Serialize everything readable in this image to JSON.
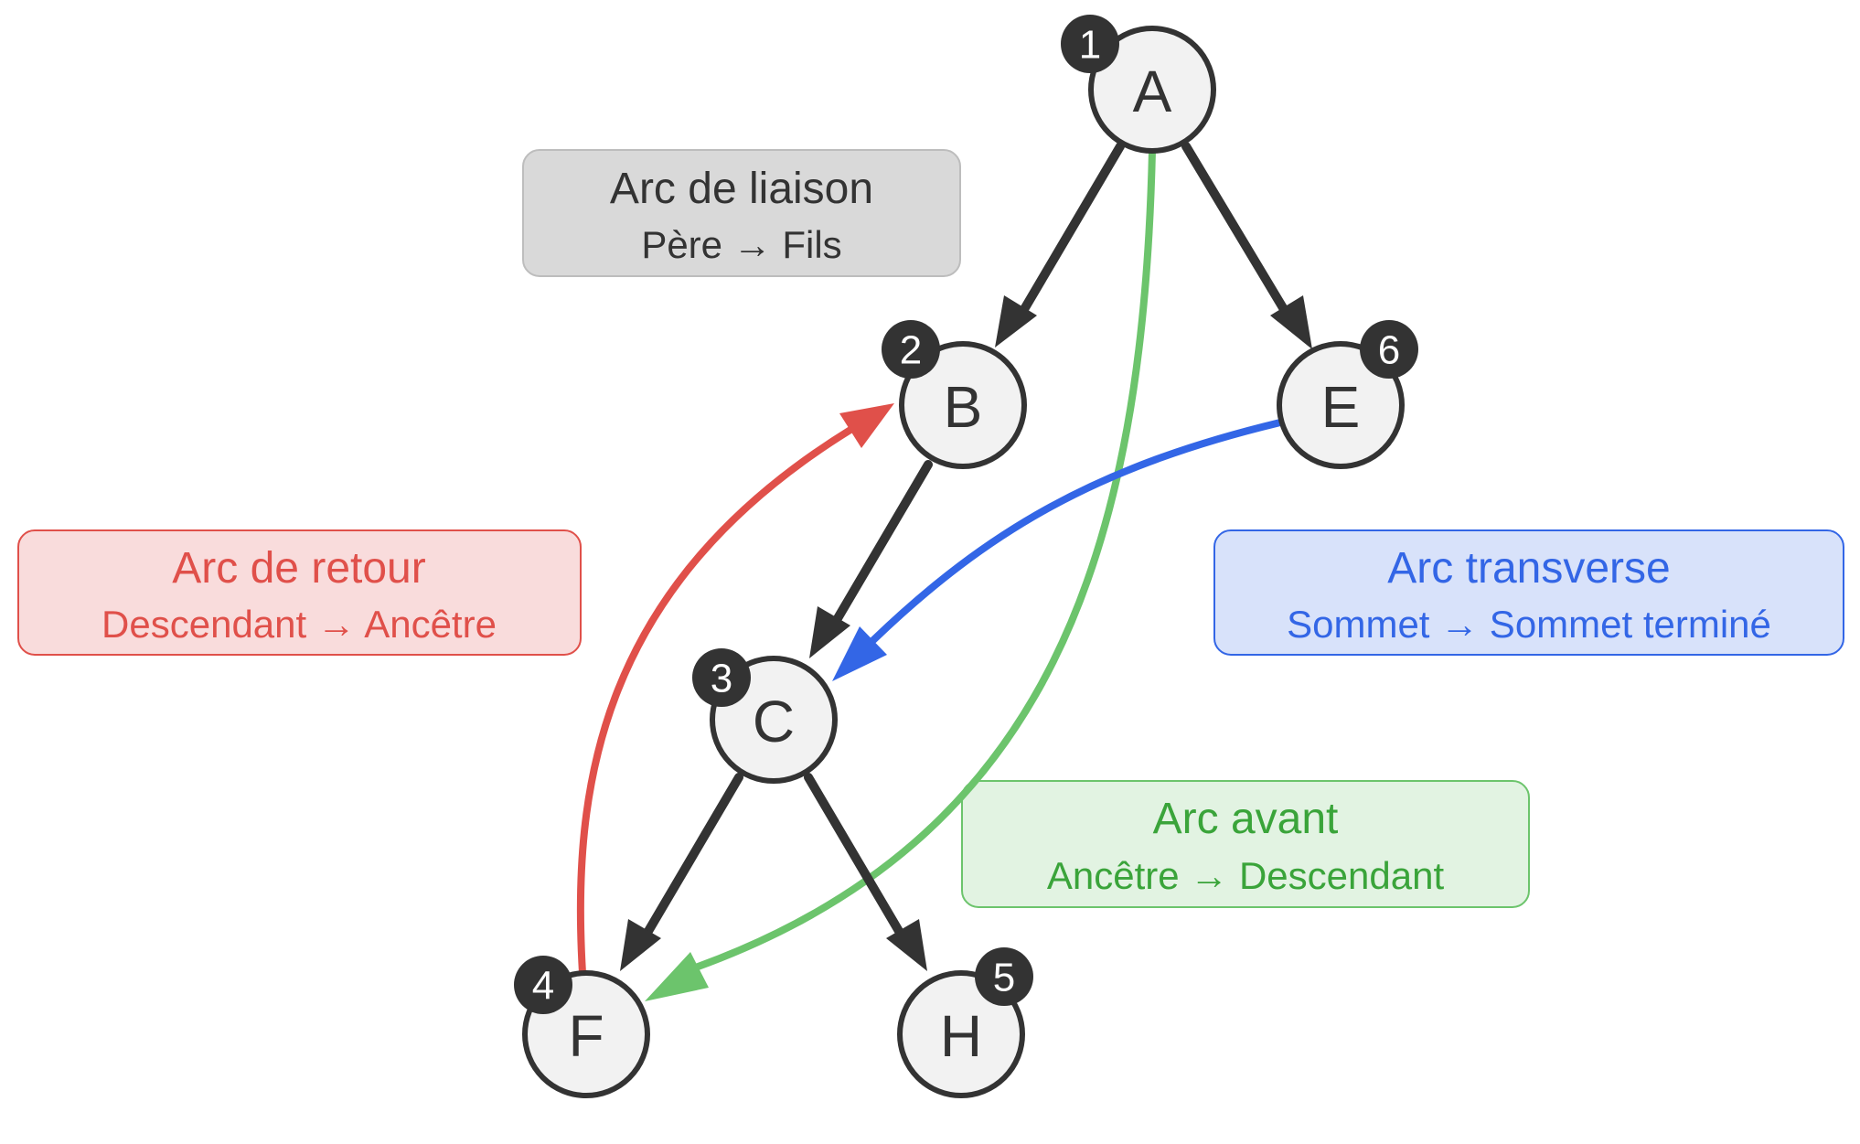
{
  "nodes": [
    {
      "id": "A",
      "label": "A",
      "order": "1"
    },
    {
      "id": "B",
      "label": "B",
      "order": "2"
    },
    {
      "id": "C",
      "label": "C",
      "order": "3"
    },
    {
      "id": "F",
      "label": "F",
      "order": "4"
    },
    {
      "id": "H",
      "label": "H",
      "order": "5"
    },
    {
      "id": "E",
      "label": "E",
      "order": "6"
    }
  ],
  "edges": [
    {
      "from": "A",
      "to": "B",
      "kind": "liaison"
    },
    {
      "from": "A",
      "to": "E",
      "kind": "liaison"
    },
    {
      "from": "B",
      "to": "C",
      "kind": "liaison"
    },
    {
      "from": "C",
      "to": "F",
      "kind": "liaison"
    },
    {
      "from": "C",
      "to": "H",
      "kind": "liaison"
    },
    {
      "from": "F",
      "to": "B",
      "kind": "retour"
    },
    {
      "from": "E",
      "to": "C",
      "kind": "transverse"
    },
    {
      "from": "A",
      "to": "F",
      "kind": "avant"
    }
  ],
  "legend": {
    "liaison": {
      "title": "Arc de liaison",
      "subtitle": "Père → Fils",
      "color": "#333333",
      "fill": "#d9d9d9",
      "border": "#bdbdbd",
      "text": "#333333"
    },
    "retour": {
      "title": "Arc de retour",
      "subtitle": "Descendant → Ancêtre",
      "color": "#e0504a",
      "fill": "#f9dcdc",
      "border": "#e0504a",
      "text": "#e0504a"
    },
    "transverse": {
      "title": "Arc transverse",
      "subtitle": "Sommet → Sommet terminé",
      "color": "#3366e6",
      "fill": "#d8e2fa",
      "border": "#3366e6",
      "text": "#3366e6"
    },
    "avant": {
      "title": "Arc avant",
      "subtitle": "Ancêtre → Descendant",
      "color": "#6cc46c",
      "fill": "#e2f3e2",
      "border": "#6cc46c",
      "text": "#3aa43a"
    }
  }
}
